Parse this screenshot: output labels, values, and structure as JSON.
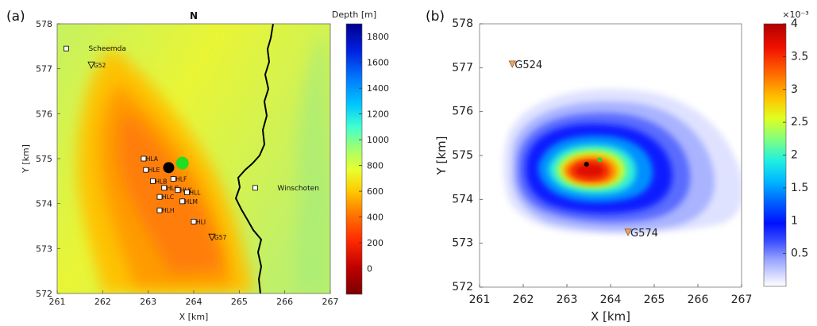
{
  "chart_data": [
    {
      "type": "heatmap",
      "panel_label": "(a)",
      "north_label": "N",
      "xlabel": "X [km]",
      "ylabel": "Y [km]",
      "xlim": [
        261,
        267
      ],
      "ylim": [
        572,
        578
      ],
      "xticks": [
        "261",
        "262",
        "263",
        "264",
        "265",
        "266",
        "267"
      ],
      "yticks": [
        "572",
        "573",
        "574",
        "575",
        "576",
        "577",
        "578"
      ],
      "colorbar": {
        "label": "Depth [m]",
        "range": [
          -200,
          1900
        ],
        "ticks": [
          "1800",
          "1600",
          "1400",
          "1200",
          "1000",
          "800",
          "600",
          "400",
          "200",
          "0"
        ],
        "colors": [
          "#7a0000",
          "#c00000",
          "#ff2a00",
          "#ff7a00",
          "#ffc800",
          "#e8ff30",
          "#a0ff70",
          "#40ffd0",
          "#00c8ff",
          "#0078ff",
          "#0020e0",
          "#000090"
        ]
      },
      "towns": [
        {
          "name": "Scheemda",
          "x": 261.2,
          "y": 577.45
        },
        {
          "name": "Winschoten",
          "x": 265.35,
          "y": 574.35
        }
      ],
      "stations": [
        {
          "name": "G52",
          "x": 261.75,
          "y": 577.08
        },
        {
          "name": "G57",
          "x": 264.4,
          "y": 573.25
        }
      ],
      "borehole_stations": [
        {
          "name": "HLA",
          "x": 262.9,
          "y": 575.0
        },
        {
          "name": "HLE",
          "x": 262.95,
          "y": 574.75
        },
        {
          "name": "HLB",
          "x": 263.1,
          "y": 574.5
        },
        {
          "name": "HLF",
          "x": 263.55,
          "y": 574.55
        },
        {
          "name": "HLG",
          "x": 263.35,
          "y": 574.35
        },
        {
          "name": "HLK",
          "x": 263.65,
          "y": 574.3
        },
        {
          "name": "HLC",
          "x": 263.25,
          "y": 574.15
        },
        {
          "name": "HLL",
          "x": 263.85,
          "y": 574.25
        },
        {
          "name": "HLM",
          "x": 263.75,
          "y": 574.05
        },
        {
          "name": "HLH",
          "x": 263.25,
          "y": 573.85
        },
        {
          "name": "HLI",
          "x": 264.0,
          "y": 573.6
        }
      ]
    },
    {
      "type": "heatmap",
      "panel_label": "(b)",
      "xlabel": "X [km]",
      "ylabel": "Y [km]",
      "xlim": [
        261,
        267
      ],
      "ylim": [
        572,
        578
      ],
      "xticks": [
        "261",
        "262",
        "263",
        "264",
        "265",
        "266",
        "267"
      ],
      "yticks": [
        "572",
        "573",
        "574",
        "575",
        "576",
        "577",
        "578"
      ],
      "colorbar": {
        "exponent_label": "×10⁻³",
        "range": [
          0,
          4
        ],
        "ticks": [
          "4",
          "3.5",
          "3",
          "2.5",
          "2",
          "1.5",
          "1",
          "0.5"
        ],
        "colors": [
          "#ffffff",
          "#d8dcff",
          "#9aa6ff",
          "#3c50ff",
          "#0010ff",
          "#0060ff",
          "#00b8ff",
          "#20f0e0",
          "#80ff80",
          "#e0ff20",
          "#ffc000",
          "#ff6000",
          "#f01000",
          "#b00000"
        ]
      },
      "stations": [
        {
          "name": "G524",
          "x": 261.75,
          "y": 577.08
        },
        {
          "name": "G574",
          "x": 264.4,
          "y": 573.25
        }
      ],
      "epicenter_black": {
        "x": 263.45,
        "y": 574.8
      },
      "epicenter_green": {
        "x": 263.75,
        "y": 574.9
      }
    }
  ]
}
